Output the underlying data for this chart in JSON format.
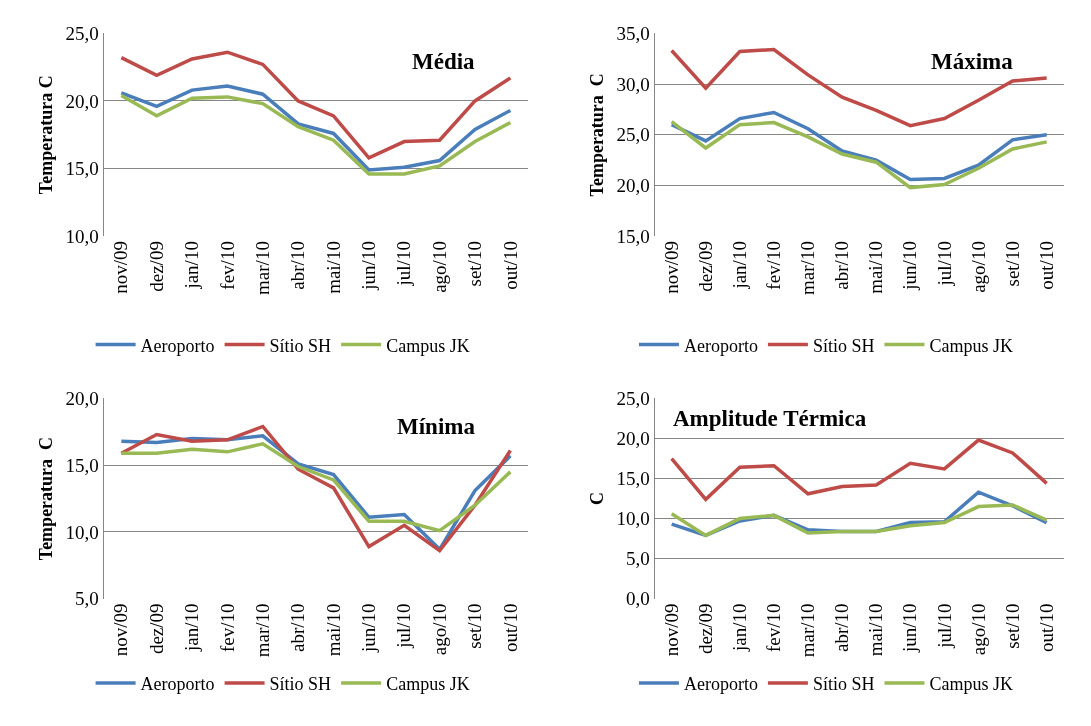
{
  "chart_data": [
    {
      "type": "line",
      "title": "Média",
      "ylabel": "Temperatura C",
      "categories": [
        "nov/09",
        "dez/09",
        "jan/10",
        "fev/10",
        "mar/10",
        "abr/10",
        "mai/10",
        "jun/10",
        "jul/10",
        "ago/10",
        "set/10",
        "out/10"
      ],
      "series": [
        {
          "name": "Aeroporto",
          "color": "#4a7ebb",
          "values": [
            20.6,
            19.6,
            20.8,
            21.1,
            20.5,
            18.3,
            17.6,
            14.9,
            15.1,
            15.6,
            17.9,
            19.3
          ]
        },
        {
          "name": "Sítio SH",
          "color": "#be4b48",
          "values": [
            23.2,
            21.9,
            23.1,
            23.6,
            22.7,
            20.0,
            18.9,
            15.8,
            17.0,
            17.1,
            20.0,
            21.7
          ]
        },
        {
          "name": "Campus JK",
          "color": "#98b954",
          "values": [
            20.4,
            18.9,
            20.2,
            20.3,
            19.8,
            18.1,
            17.1,
            14.6,
            14.6,
            15.2,
            17.0,
            18.4
          ]
        }
      ],
      "ylim": [
        10,
        25
      ],
      "yticks": [
        {
          "value": 10,
          "label": "10,0"
        },
        {
          "value": 15,
          "label": "15,0"
        },
        {
          "value": 20,
          "label": "20,0"
        },
        {
          "value": 25,
          "label": "25,0"
        }
      ],
      "grid": "y",
      "legend": "bottom",
      "marker": "none",
      "line_style": "solid"
    },
    {
      "type": "line",
      "title": "Máxima",
      "ylabel": "Temperatura  C",
      "categories": [
        "nov/09",
        "dez/09",
        "jan/10",
        "fev/10",
        "mar/10",
        "abr/10",
        "mai/10",
        "jun/10",
        "jul/10",
        "ago/10",
        "set/10",
        "out/10"
      ],
      "series": [
        {
          "name": "Aeroporto",
          "color": "#4a7ebb",
          "values": [
            26.0,
            24.4,
            26.6,
            27.2,
            25.6,
            23.4,
            22.5,
            20.6,
            20.7,
            22.0,
            24.5,
            25.0
          ]
        },
        {
          "name": "Sítio SH",
          "color": "#be4b48",
          "values": [
            33.3,
            29.6,
            33.2,
            33.4,
            30.9,
            28.7,
            27.4,
            25.9,
            26.6,
            28.4,
            30.3,
            30.6
          ]
        },
        {
          "name": "Campus JK",
          "color": "#98b954",
          "values": [
            26.3,
            23.7,
            26.0,
            26.2,
            24.8,
            23.1,
            22.3,
            19.8,
            20.1,
            21.7,
            23.6,
            24.3
          ]
        }
      ],
      "ylim": [
        15,
        35
      ],
      "yticks": [
        {
          "value": 15,
          "label": "15,0"
        },
        {
          "value": 20,
          "label": "20,0"
        },
        {
          "value": 25,
          "label": "25,0"
        },
        {
          "value": 30,
          "label": "30,0"
        },
        {
          "value": 35,
          "label": "35,0"
        }
      ],
      "grid": "y",
      "legend": "bottom",
      "marker": "none",
      "line_style": "solid"
    },
    {
      "type": "line",
      "title": "Mínima",
      "ylabel": "Temperatura  C",
      "categories": [
        "nov/09",
        "dez/09",
        "jan/10",
        "fev/10",
        "mar/10",
        "abr/10",
        "mai/10",
        "jun/10",
        "jul/10",
        "ago/10",
        "set/10",
        "out/10"
      ],
      "series": [
        {
          "name": "Aeroporto",
          "color": "#4a7ebb",
          "values": [
            16.8,
            16.7,
            17.0,
            16.9,
            17.2,
            15.1,
            14.3,
            11.1,
            11.3,
            8.7,
            13.1,
            15.7
          ]
        },
        {
          "name": "Sítio SH",
          "color": "#be4b48",
          "values": [
            15.9,
            17.3,
            16.8,
            16.9,
            17.9,
            14.7,
            13.3,
            8.9,
            10.5,
            8.6,
            12.0,
            16.1
          ]
        },
        {
          "name": "Campus JK",
          "color": "#98b954",
          "values": [
            15.9,
            15.9,
            16.2,
            16.0,
            16.6,
            14.9,
            13.9,
            10.8,
            10.8,
            10.1,
            12.0,
            14.5
          ]
        }
      ],
      "ylim": [
        5,
        20
      ],
      "yticks": [
        {
          "value": 5,
          "label": "5,0"
        },
        {
          "value": 10,
          "label": "10,0"
        },
        {
          "value": 15,
          "label": "15,0"
        },
        {
          "value": 20,
          "label": "20,0"
        }
      ],
      "grid": "y",
      "legend": "bottom",
      "marker": "none",
      "line_style": "solid"
    },
    {
      "type": "line",
      "title": "Amplitude Térmica",
      "ylabel": "C",
      "categories": [
        "nov/09",
        "dez/09",
        "jan/10",
        "fev/10",
        "mar/10",
        "abr/10",
        "mai/10",
        "jun/10",
        "jul/10",
        "ago/10",
        "set/10",
        "out/10"
      ],
      "series": [
        {
          "name": "Aeroporto",
          "color": "#4a7ebb",
          "values": [
            9.3,
            7.9,
            9.7,
            10.4,
            8.6,
            8.4,
            8.4,
            9.5,
            9.6,
            13.3,
            11.6,
            9.5
          ]
        },
        {
          "name": "Sítio SH",
          "color": "#be4b48",
          "values": [
            17.5,
            12.4,
            16.4,
            16.6,
            13.1,
            14.0,
            14.2,
            16.9,
            16.2,
            19.8,
            18.2,
            14.4
          ]
        },
        {
          "name": "Campus JK",
          "color": "#98b954",
          "values": [
            10.6,
            7.9,
            10.0,
            10.4,
            8.2,
            8.4,
            8.4,
            9.1,
            9.5,
            11.5,
            11.7,
            9.8
          ]
        }
      ],
      "ylim": [
        0,
        25
      ],
      "yticks": [
        {
          "value": 0,
          "label": "0,0"
        },
        {
          "value": 5,
          "label": "5,0"
        },
        {
          "value": 10,
          "label": "10,0"
        },
        {
          "value": 15,
          "label": "15,0"
        },
        {
          "value": 20,
          "label": "20,0"
        },
        {
          "value": 25,
          "label": "25,0"
        }
      ],
      "grid": "y",
      "legend": "bottom",
      "marker": "none",
      "line_style": "solid"
    }
  ]
}
